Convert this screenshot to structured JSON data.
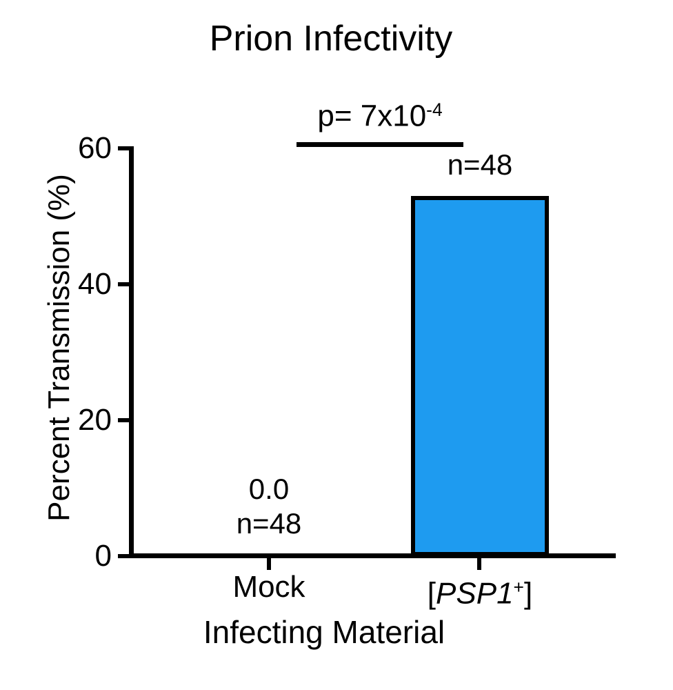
{
  "title": "Prion Infectivity",
  "annotation": {
    "p_base": "p= 7x10",
    "p_exp": "-4",
    "n_psp1": "n=48",
    "mock_value": "0.0",
    "n_mock": "n=48"
  },
  "axes": {
    "ylabel": "Percent Transmission (%)",
    "xlabel": "Infecting Material",
    "yticks": [
      "60",
      "40",
      "20",
      "0"
    ],
    "cat_mock": "Mock",
    "cat_psp1": {
      "open": "[",
      "name": "PSP1",
      "sup": "+",
      "close": "]"
    }
  },
  "chart_data": {
    "type": "bar",
    "title": "Prion Infectivity",
    "categories": [
      "Mock",
      "[PSP1+]"
    ],
    "values": [
      0.0,
      53
    ],
    "n_values": [
      48,
      48
    ],
    "xlabel": "Infecting Material",
    "ylabel": "Percent Transmission (%)",
    "ylim": [
      0,
      60
    ],
    "yticks": [
      0,
      20,
      40,
      60
    ],
    "grid": false,
    "legend": "none",
    "bar_color": "#1E9BF0",
    "bar_border_color": "#000000",
    "significance": {
      "label": "p= 7x10^-4",
      "p_value": 0.0007,
      "between": [
        "Mock",
        "[PSP1+]"
      ]
    }
  }
}
